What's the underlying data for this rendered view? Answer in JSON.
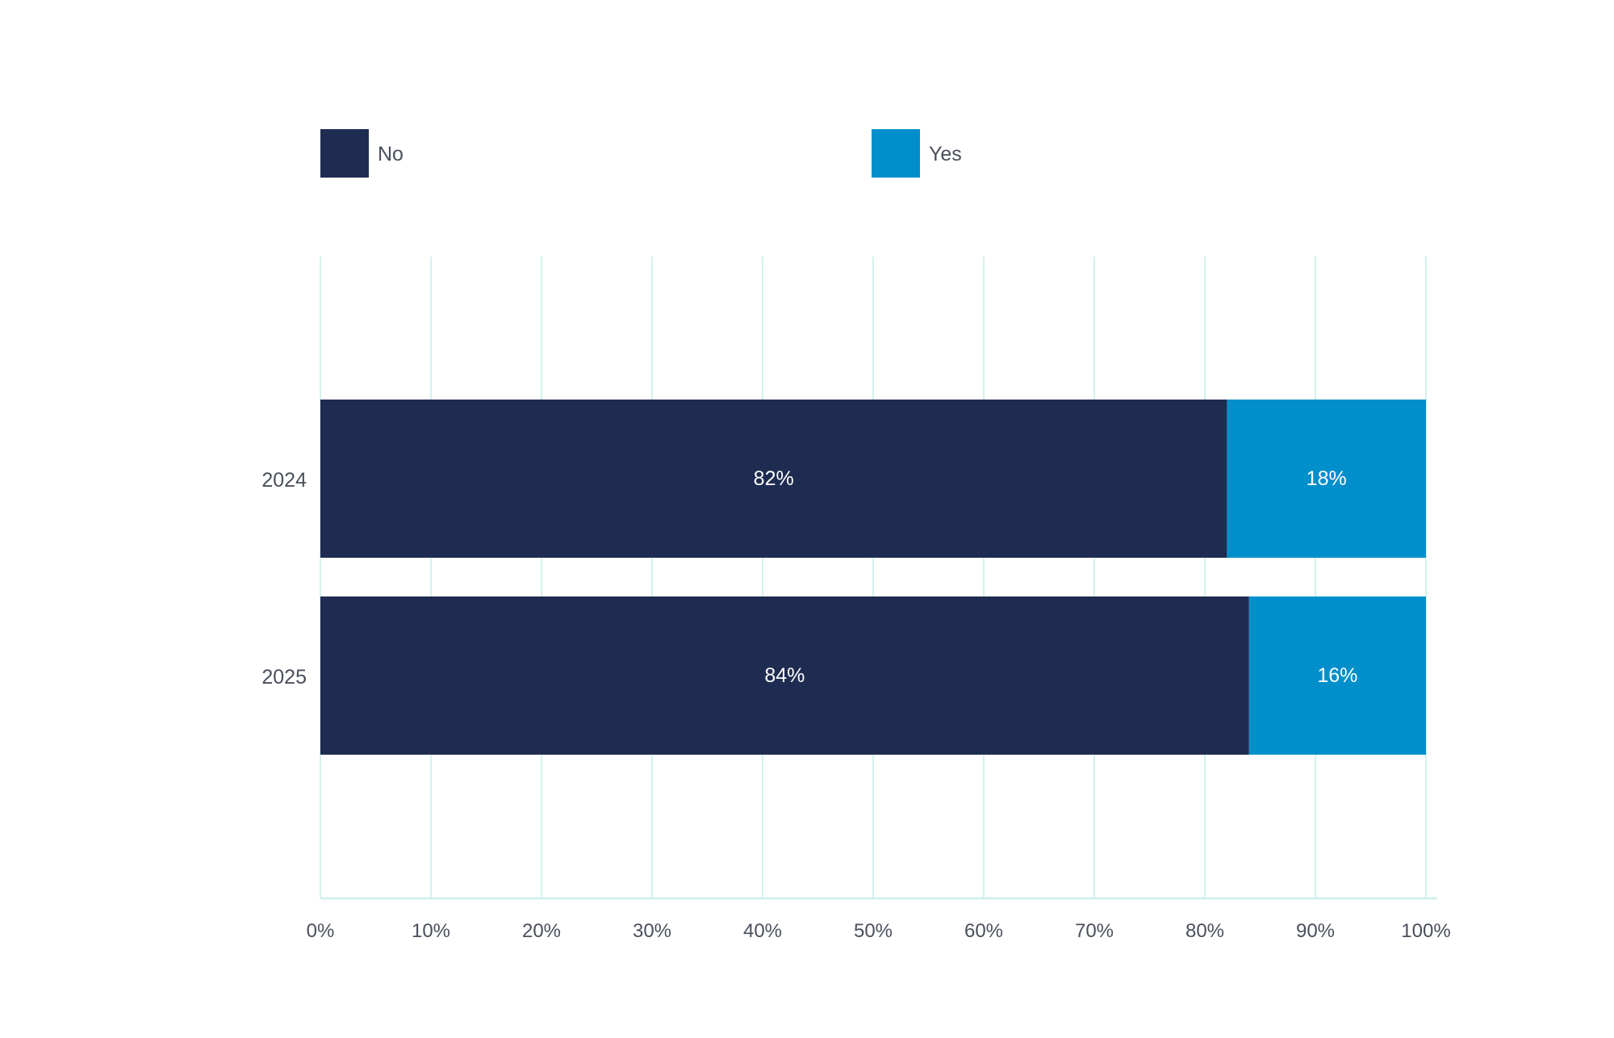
{
  "chart_data": {
    "type": "bar",
    "orientation": "horizontal",
    "stacked": true,
    "categories": [
      "2024",
      "2025"
    ],
    "series": [
      {
        "name": "No",
        "values": [
          82,
          84
        ],
        "color": "#1f2c51"
      },
      {
        "name": "Yes",
        "values": [
          18,
          16
        ],
        "color": "#008fcb"
      }
    ],
    "xlim": [
      0,
      100
    ],
    "x_ticks": [
      "0%",
      "10%",
      "20%",
      "30%",
      "40%",
      "50%",
      "60%",
      "70%",
      "80%",
      "90%",
      "100%"
    ],
    "data_labels": [
      [
        "82%",
        "84%"
      ],
      [
        "18%",
        "16%"
      ]
    ],
    "grid": true,
    "gridline_color": "#d3f1ee",
    "legend_position": "top-left"
  }
}
